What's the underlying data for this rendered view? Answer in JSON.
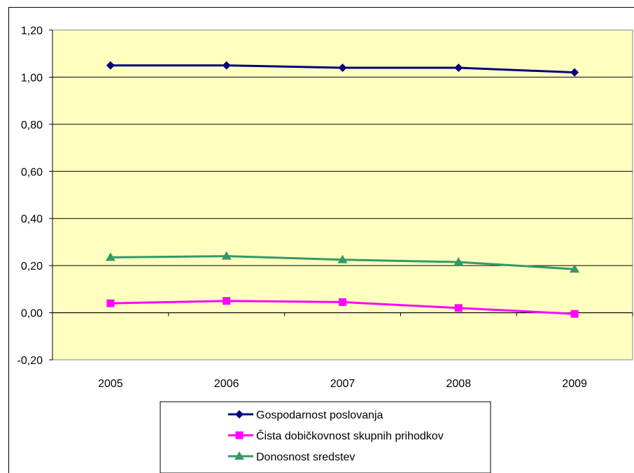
{
  "chart_data": {
    "type": "line",
    "categories": [
      "2005",
      "2006",
      "2007",
      "2008",
      "2009"
    ],
    "ylim": [
      -0.2,
      1.2
    ],
    "yticks": [
      -0.2,
      0.0,
      0.2,
      0.4,
      0.6,
      0.8,
      1.0,
      1.2
    ],
    "ytick_labels": [
      "-0,20",
      "0,00",
      "0,20",
      "0,40",
      "0,60",
      "0,80",
      "1,00",
      "1,20"
    ],
    "grid": true,
    "legend_position": "bottom",
    "plot_background": "#ffffc0",
    "series": [
      {
        "name": "Gospodarnost poslovanja",
        "values": [
          1.05,
          1.05,
          1.04,
          1.04,
          1.02
        ],
        "color": "#000080",
        "marker": "diamond"
      },
      {
        "name": "Čista dobičkovnost skupnih prihodkov",
        "values": [
          0.04,
          0.05,
          0.045,
          0.02,
          -0.005
        ],
        "color": "#ff00ff",
        "marker": "square"
      },
      {
        "name": "Donosnost sredstev",
        "values": [
          0.235,
          0.24,
          0.225,
          0.215,
          0.185
        ],
        "color": "#339966",
        "marker": "triangle"
      }
    ]
  }
}
